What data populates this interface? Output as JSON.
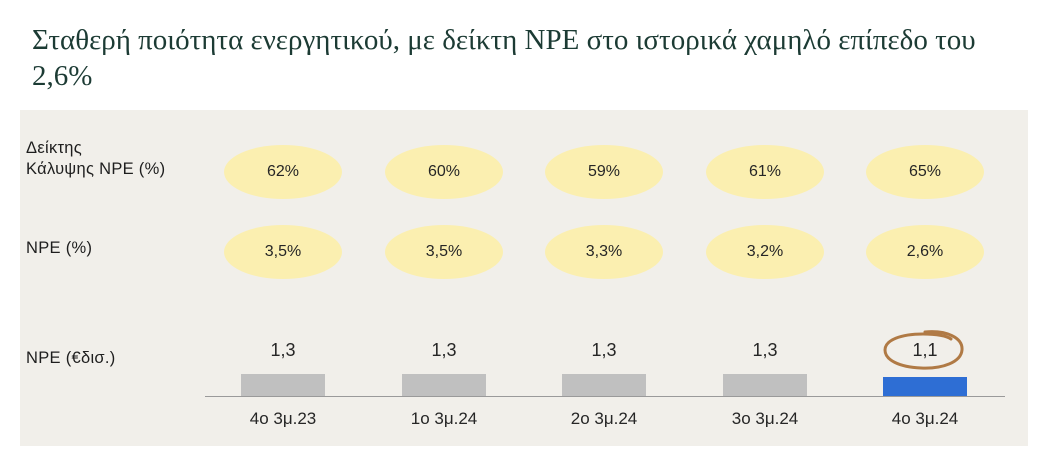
{
  "title": "Σταθερή ποιότητα ενεργητικού, με δείκτη NPE στο ιστορικά χαμηλό επίπεδο του 2,6%",
  "chart_data": {
    "type": "bar",
    "title": "Σταθερή ποιότητα ενεργητικού, με δείκτη NPE στο ιστορικά χαμηλό επίπεδο του 2,6%",
    "categories": [
      "4ο 3μ.23",
      "1ο 3μ.24",
      "2ο 3μ.24",
      "3ο 3μ.24",
      "4ο 3μ.24"
    ],
    "rows": {
      "coverage": {
        "label_line1": "Δείκτης",
        "label_line2": "Κάλυψης NPE (%)",
        "values": [
          "62%",
          "60%",
          "59%",
          "61%",
          "65%"
        ]
      },
      "npe_ratio": {
        "label": "NPE (%)",
        "values": [
          "3,5%",
          "3,5%",
          "3,3%",
          "3,2%",
          "2,6%"
        ]
      }
    },
    "series": [
      {
        "name": "NPE (€δισ.)",
        "values": [
          1.3,
          1.3,
          1.3,
          1.3,
          1.1
        ],
        "labels": [
          "1,3",
          "1,3",
          "1,3",
          "1,3",
          "1,1"
        ]
      }
    ],
    "highlight_index": 4,
    "colors": {
      "bar": "#c0c0c0",
      "bar_highlight": "#2e6ed4",
      "pill": "#fbefb0",
      "circle": "#b07a45",
      "panel": "#f1efea"
    }
  }
}
